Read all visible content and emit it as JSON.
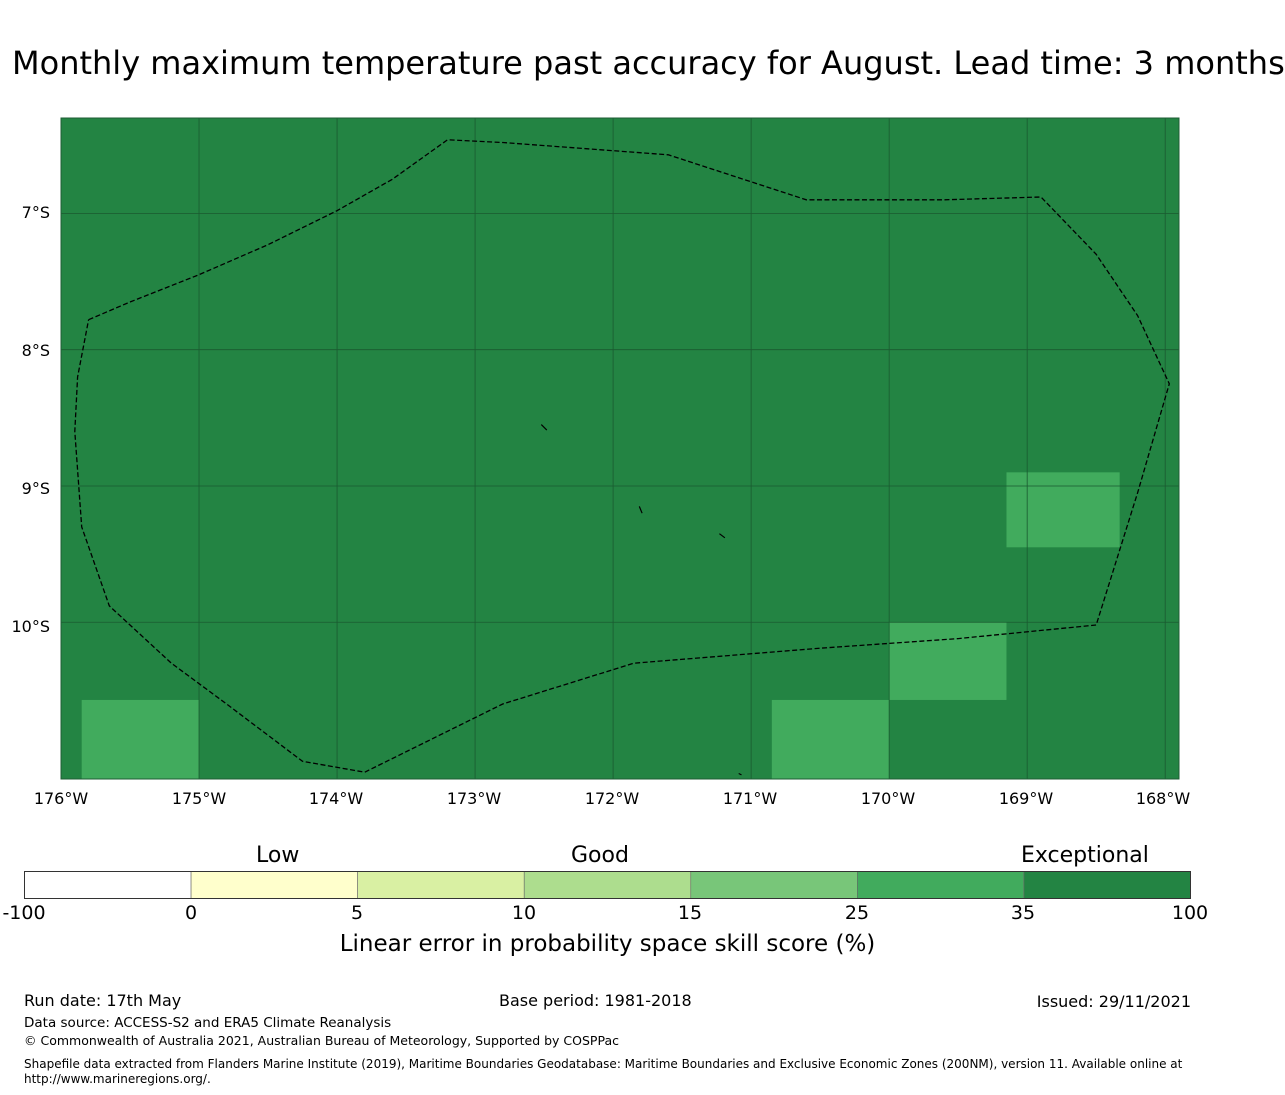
{
  "title": "Monthly maximum temperature past accuracy for August. Lead time: 3 months",
  "map": {
    "lat_labels": [
      "7°S",
      "8°S",
      "9°S",
      "10°S"
    ],
    "lon_labels": [
      "176°W",
      "175°W",
      "174°W",
      "173°W",
      "172°W",
      "171°W",
      "170°W",
      "169°W",
      "168°W"
    ],
    "extent": {
      "lon": [
        -176,
        -167.9
      ],
      "lat": [
        -11.15,
        -6.3
      ]
    },
    "background_category": "Exceptional",
    "cells": [
      {
        "lon": [
          -175.85,
          -175.0
        ],
        "lat": [
          -11.15,
          -10.57
        ],
        "class": "25-35"
      },
      {
        "lon": [
          -170.85,
          -170.0
        ],
        "lat": [
          -11.15,
          -10.57
        ],
        "class": "25-35"
      },
      {
        "lon": [
          -170.0,
          -169.15
        ],
        "lat": [
          -10.57,
          -10.0
        ],
        "class": "25-35"
      },
      {
        "lon": [
          -169.15,
          -168.33
        ],
        "lat": [
          -9.45,
          -8.9
        ],
        "class": "25-35"
      }
    ],
    "eez_boundary": [
      [
        -175.8,
        -7.78
      ],
      [
        -175.5,
        -7.65
      ],
      [
        -175.0,
        -7.45
      ],
      [
        -174.5,
        -7.23
      ],
      [
        -174.0,
        -6.98
      ],
      [
        -173.6,
        -6.75
      ],
      [
        -173.2,
        -6.46
      ],
      [
        -172.8,
        -6.48
      ],
      [
        -172.0,
        -6.54
      ],
      [
        -171.6,
        -6.57
      ],
      [
        -170.6,
        -6.9
      ],
      [
        -169.6,
        -6.9
      ],
      [
        -168.9,
        -6.88
      ],
      [
        -168.5,
        -7.3
      ],
      [
        -168.2,
        -7.75
      ],
      [
        -167.97,
        -8.25
      ],
      [
        -168.2,
        -9.05
      ],
      [
        -168.5,
        -10.02
      ],
      [
        -169.5,
        -10.12
      ],
      [
        -170.5,
        -10.19
      ],
      [
        -171.85,
        -10.3
      ],
      [
        -172.8,
        -10.6
      ],
      [
        -173.8,
        -11.1
      ],
      [
        -174.25,
        -11.02
      ],
      [
        -174.8,
        -10.6
      ],
      [
        -175.2,
        -10.3
      ],
      [
        -175.65,
        -9.88
      ],
      [
        -175.85,
        -9.3
      ],
      [
        -175.9,
        -8.6
      ],
      [
        -175.88,
        -8.2
      ],
      [
        -175.8,
        -7.78
      ]
    ],
    "islands": [
      [
        [
          -172.52,
          -8.55
        ],
        [
          -172.48,
          -8.59
        ]
      ],
      [
        [
          -171.81,
          -9.15
        ],
        [
          -171.79,
          -9.2
        ]
      ],
      [
        [
          -171.23,
          -9.35
        ],
        [
          -171.19,
          -9.38
        ]
      ],
      [
        [
          -171.09,
          -11.11
        ],
        [
          -171.07,
          -11.12
        ]
      ]
    ]
  },
  "colorbar": {
    "categories": [
      {
        "label": "Low",
        "center": 2.5
      },
      {
        "label": "Good",
        "center": 10
      },
      {
        "label": "Exceptional",
        "center": 30
      }
    ],
    "bins": [
      {
        "from": -100,
        "to": 0,
        "color": "#ffffff"
      },
      {
        "from": 0,
        "to": 5,
        "color": "#ffffcc"
      },
      {
        "from": 5,
        "to": 10,
        "color": "#d9f0a3"
      },
      {
        "from": 10,
        "to": 15,
        "color": "#addd8e"
      },
      {
        "from": 15,
        "to": 25,
        "color": "#78c679"
      },
      {
        "from": 25,
        "to": 35,
        "color": "#41ab5d"
      },
      {
        "from": 35,
        "to": 100,
        "color": "#238443"
      }
    ],
    "ticks": [
      "-100",
      "0",
      "5",
      "10",
      "15",
      "25",
      "35",
      "100"
    ],
    "label": "Linear error in probability space skill score (%)"
  },
  "footer": {
    "run_date": "Run date: 17th May",
    "base_period": "Base period: 1981-2018",
    "issued": "Issued: 29/11/2021",
    "data_source": "Data source: ACCESS-S2 and ERA5 Climate Reanalysis",
    "copyright": "© Commonwealth of Australia 2021, Australian Bureau of Meteorology, Supported by COSPPac",
    "shapefile": "Shapefile data extracted from Flanders Marine Institute (2019), Maritime Boundaries Geodatabase: Maritime Boundaries and Exclusive Economic Zones (200NM), version 11. Available online at http://www.marineregions.org/."
  }
}
